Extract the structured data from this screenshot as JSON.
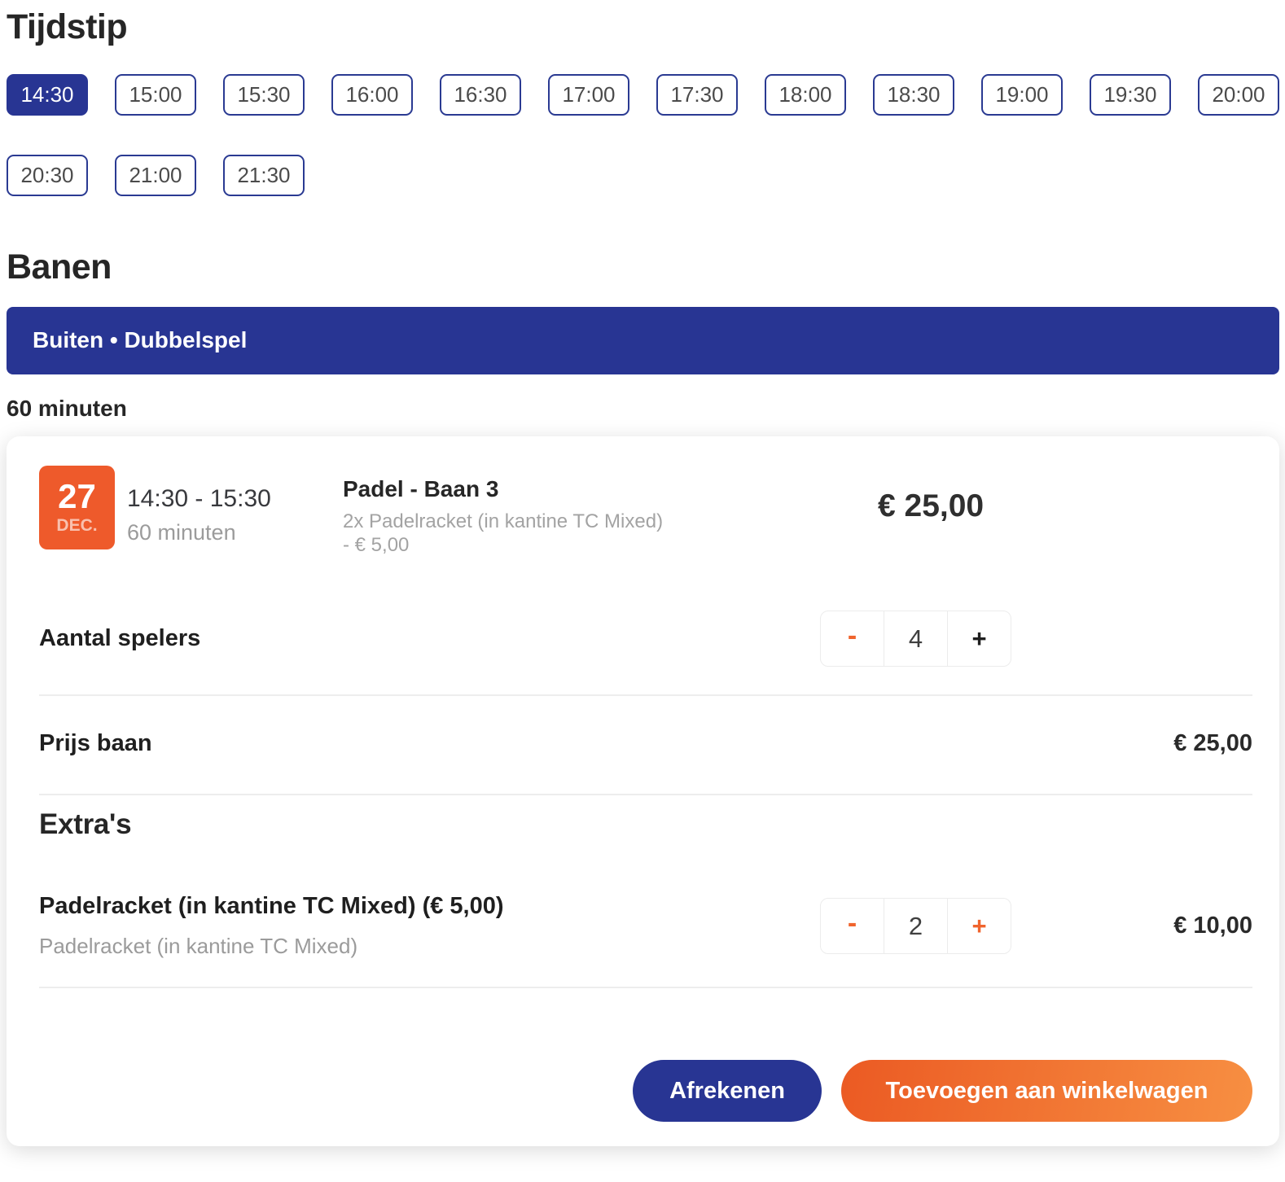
{
  "tijdstip": {
    "title": "Tijdstip",
    "selected_slot": "14:30",
    "slots": [
      {
        "label": "14:30",
        "selected": true
      },
      {
        "label": "15:00",
        "selected": false
      },
      {
        "label": "15:30",
        "selected": false
      },
      {
        "label": "16:00",
        "selected": false
      },
      {
        "label": "16:30",
        "selected": false
      },
      {
        "label": "17:00",
        "selected": false
      },
      {
        "label": "17:30",
        "selected": false
      },
      {
        "label": "18:00",
        "selected": false
      },
      {
        "label": "18:30",
        "selected": false
      },
      {
        "label": "19:00",
        "selected": false
      },
      {
        "label": "19:30",
        "selected": false
      },
      {
        "label": "20:00",
        "selected": false
      },
      {
        "label": "20:30",
        "selected": false
      },
      {
        "label": "21:00",
        "selected": false
      },
      {
        "label": "21:30",
        "selected": false
      }
    ]
  },
  "banen": {
    "title": "Banen",
    "filter_banner": "Buiten • Dubbelspel",
    "duration_heading": "60 minuten"
  },
  "booking": {
    "date": {
      "day": "27",
      "month": "DEC."
    },
    "time_range": "14:30 - 15:30",
    "duration": "60 minuten",
    "court_name": "Padel - Baan 3",
    "court_note_line1": "2x Padelracket (in kantine TC Mixed)",
    "court_note_line2": "- € 5,00",
    "header_price": "€ 25,00",
    "players": {
      "label": "Aantal spelers",
      "value": "4",
      "minus": "-",
      "plus": "+"
    },
    "court_price": {
      "label": "Prijs baan",
      "value": "€ 25,00"
    },
    "extras": {
      "heading": "Extra's",
      "item": {
        "title": "Padelracket (in kantine TC Mixed) (€ 5,00)",
        "subtitle": "Padelracket (in kantine TC Mixed)",
        "minus": "-",
        "qty": "2",
        "plus": "+",
        "price": "€ 10,00"
      }
    },
    "actions": {
      "checkout": "Afrekenen",
      "add_to_cart": "Toevoegen aan winkelwagen"
    }
  },
  "colors": {
    "navy": "#283593",
    "orange": "#ee5a2b",
    "orange_gradient_start": "#eb5a23",
    "orange_gradient_end": "#f78f42",
    "gray_text": "#9b9b9b",
    "divider": "#ededed"
  }
}
